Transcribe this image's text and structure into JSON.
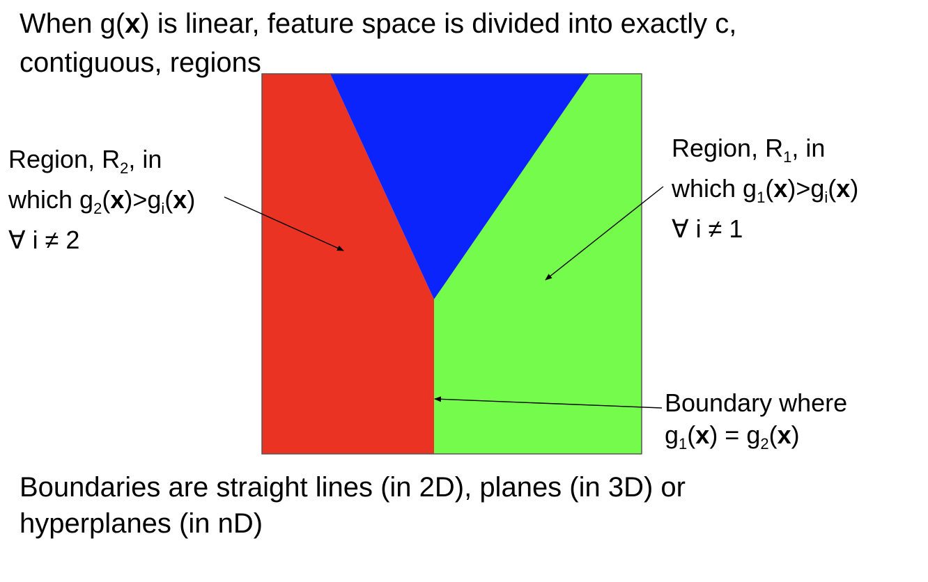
{
  "title": {
    "line1_prefix": "When g(",
    "line1_bold": "x",
    "line1_suffix": ") is linear, feature space is divided into exactly c,",
    "line2": "contiguous, regions"
  },
  "region_r2_label": {
    "l1_a": "Region, R",
    "l1_sub": "2",
    "l1_b": ", in",
    "l2_a": "which g",
    "l2_sub1": "2",
    "l2_b": "(",
    "l2_x1": "x",
    "l2_c": ")>g",
    "l2_sub2": "i",
    "l2_d": "(",
    "l2_x2": "x",
    "l2_e": ")",
    "l3": "∀ i ≠ 2"
  },
  "region_r1_label": {
    "l1_a": "Region, R",
    "l1_sub": "1",
    "l1_b": ", in",
    "l2_a": "which g",
    "l2_sub1": "1",
    "l2_b": "(",
    "l2_x1": "x",
    "l2_c": ")>g",
    "l2_sub2": "i",
    "l2_d": "(",
    "l2_x2": "x",
    "l2_e": ")",
    "l3": "∀ i ≠ 1"
  },
  "boundary_label": {
    "l1": "Boundary where",
    "l2_a": "g",
    "l2_sub1": "1",
    "l2_b": "(",
    "l2_x1": "x",
    "l2_c": ") = g",
    "l2_sub2": "2",
    "l2_d": "(",
    "l2_x2": "x",
    "l2_e": ")"
  },
  "footer": {
    "line1": "Boundaries are straight lines (in 2D), planes (in 3D) or",
    "line2": "hyperplanes (in nD)"
  },
  "colors": {
    "region_r2": "#ea3323",
    "region_top": "#0b24fb",
    "region_r1": "#75fb4c",
    "arrow": "#000000"
  }
}
